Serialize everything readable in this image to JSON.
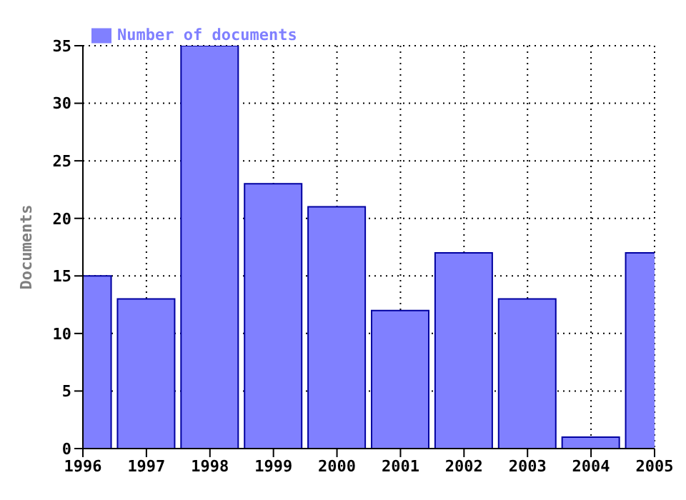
{
  "chart_data": {
    "type": "bar",
    "ylabel": "Documents",
    "x": [
      1996,
      1997,
      1998,
      1999,
      2000,
      2001,
      2002,
      2003,
      2004,
      2005
    ],
    "series": [
      {
        "name": "Number of documents",
        "color": "#8080ff",
        "values": [
          15,
          13,
          35,
          23,
          21,
          12,
          17,
          13,
          1,
          17
        ]
      }
    ],
    "xlim": [
      1996,
      2005
    ],
    "xticks": [
      1996,
      1997,
      1998,
      1999,
      2000,
      2001,
      2002,
      2003,
      2004,
      2005
    ],
    "ylim": [
      0,
      35
    ],
    "yticks": [
      0,
      5,
      10,
      15,
      20,
      25,
      30,
      35
    ],
    "grid": true,
    "legend": "top left"
  }
}
